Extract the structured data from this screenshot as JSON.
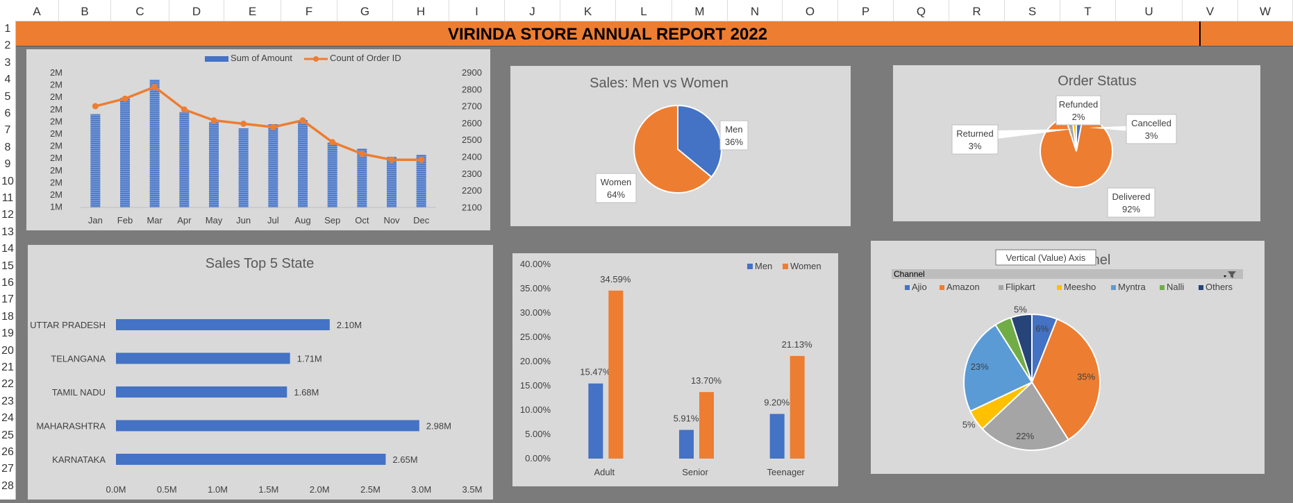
{
  "columns": [
    "A",
    "B",
    "C",
    "D",
    "E",
    "F",
    "G",
    "H",
    "I",
    "J",
    "K",
    "L",
    "M",
    "N",
    "O",
    "P",
    "Q",
    "R",
    "S",
    "T",
    "U",
    "V",
    "W"
  ],
  "rows": [
    "1",
    "2",
    "3",
    "4",
    "5",
    "6",
    "7",
    "8",
    "9",
    "10",
    "11",
    "12",
    "13",
    "14",
    "15",
    "16",
    "17",
    "18",
    "19",
    "20",
    "21",
    "22",
    "23",
    "24",
    "25",
    "26",
    "27",
    "28"
  ],
  "report_title": "VIRINDA STORE ANNUAL REPORT 2022",
  "colors": {
    "blue": "#4472c4",
    "orange": "#ed7d31",
    "gray": "#a5a5a5",
    "yellow": "#ffc000",
    "lightblue": "#5b9bd5",
    "green": "#70ad47",
    "navy": "#264478",
    "panel": "#d9d9d9"
  },
  "chart_data": [
    {
      "type": "bar",
      "title": "",
      "categories": [
        "Jan",
        "Feb",
        "Mar",
        "Apr",
        "May",
        "Jun",
        "Jul",
        "Aug",
        "Sep",
        "Oct",
        "Nov",
        "Dec"
      ],
      "series": [
        {
          "name": "Sum of Amount",
          "type": "bar",
          "values": [
            1.76,
            1.84,
            1.93,
            1.77,
            1.72,
            1.69,
            1.71,
            1.73,
            1.62,
            1.59,
            1.55,
            1.56
          ]
        },
        {
          "name": "Count of Order ID",
          "type": "line",
          "values": [
            2705,
            2750,
            2820,
            2685,
            2620,
            2600,
            2580,
            2620,
            2490,
            2420,
            2385,
            2385
          ]
        }
      ],
      "left_axis_ticks": [
        "2M",
        "2M",
        "2M",
        "2M",
        "2M",
        "2M",
        "2M",
        "2M",
        "2M",
        "2M",
        "2M",
        "1M"
      ],
      "left_axis_range": [
        1.3,
        1.96
      ],
      "right_axis_ticks": [
        "2900",
        "2800",
        "2700",
        "2600",
        "2500",
        "2400",
        "2300",
        "2200",
        "2100"
      ],
      "right_axis_range": [
        2100,
        2900
      ],
      "legend": "top"
    },
    {
      "type": "pie",
      "title": "Sales: Men vs Women",
      "categories": [
        "Men",
        "Women"
      ],
      "values": [
        36,
        64
      ],
      "data_labels": [
        "36%",
        "64%"
      ]
    },
    {
      "type": "pie",
      "title": "Order Status",
      "categories": [
        "Delivered",
        "Returned",
        "Refunded",
        "Cancelled"
      ],
      "values": [
        92,
        3,
        2,
        3
      ],
      "data_labels": [
        "92%",
        "3%",
        "2%",
        "3%"
      ]
    },
    {
      "type": "bar",
      "title": "Sales Top 5 State",
      "orientation": "horizontal",
      "categories": [
        "UTTAR PRADESH",
        "TELANGANA",
        "TAMIL NADU",
        "MAHARASHTRA",
        "KARNATAKA"
      ],
      "values": [
        2.1,
        1.71,
        1.68,
        2.98,
        2.65
      ],
      "data_labels": [
        "2.10M",
        "1.71M",
        "1.68M",
        "2.98M",
        "2.65M"
      ],
      "x_ticks": [
        "0.0M",
        "0.5M",
        "1.0M",
        "1.5M",
        "2.0M",
        "2.5M",
        "3.0M",
        "3.5M"
      ],
      "xlim": [
        0,
        3.5
      ]
    },
    {
      "type": "bar",
      "title": "",
      "categories": [
        "Adult",
        "Senior",
        "Teenager"
      ],
      "series": [
        {
          "name": "Men",
          "values": [
            15.47,
            5.91,
            9.2
          ],
          "labels": [
            "15.47%",
            "5.91%",
            "9.20%"
          ]
        },
        {
          "name": "Women",
          "values": [
            34.59,
            13.7,
            21.13
          ],
          "labels": [
            "34.59%",
            "13.70%",
            "21.13%"
          ]
        }
      ],
      "y_ticks": [
        "40.00%",
        "35.00%",
        "30.00%",
        "25.00%",
        "20.00%",
        "15.00%",
        "10.00%",
        "5.00%",
        "0.00%"
      ],
      "ylim": [
        0,
        40
      ],
      "legend": "top-right"
    },
    {
      "type": "pie",
      "title_partial": "nel",
      "tooltip": "Vertical (Value) Axis",
      "filter_label": "Channel",
      "categories": [
        "Ajio",
        "Amazon",
        "Flipkart",
        "Meesho",
        "Myntra",
        "Nalli",
        "Others"
      ],
      "values": [
        6,
        35,
        22,
        5,
        23,
        4,
        5
      ],
      "data_labels": [
        "6%",
        "35%",
        "22%",
        "5%",
        "23%",
        "",
        "5%"
      ],
      "legend": "top"
    }
  ]
}
